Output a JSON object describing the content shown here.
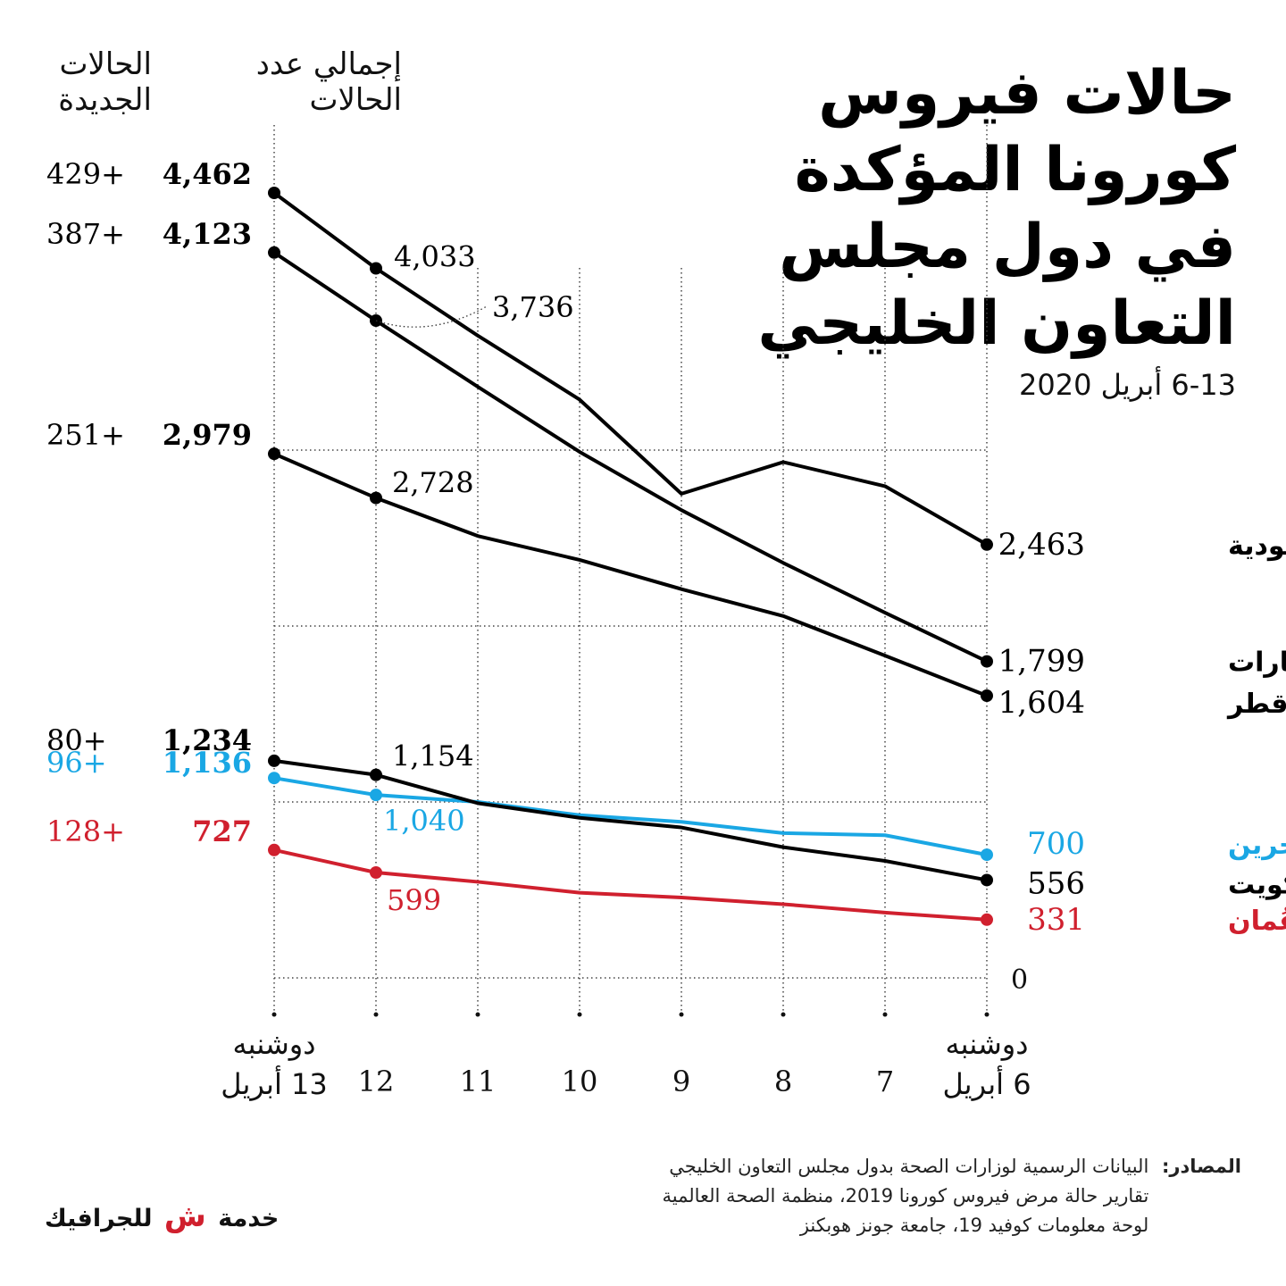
{
  "title_lines": [
    "حالات فيروس",
    "كورونا المؤكدة",
    "في دول مجلس",
    "التعاون الخليجي"
  ],
  "subtitle": "6-13 أبريل 2020",
  "col_head_new": [
    "الحالات",
    "الجديدة"
  ],
  "col_head_total": [
    "إجمالي عدد",
    "الحالات"
  ],
  "sources_label": "المصادر:",
  "sources": [
    "البيانات الرسمية لوزارات الصحة بدول مجلس التعاون الخليجي",
    "تقارير حالة مرض فيروس كورونا 2019، منظمة الصحة العالمية",
    "لوحة معلومات كوفيد 19، جامعة جونز هوبكنز"
  ],
  "brand": {
    "before": "خدمة",
    "mark": "ش",
    "after": "للجرافيك"
  },
  "colors": {
    "black": "#000000",
    "bahrain": "#1aa7e4",
    "oman": "#d0202e"
  },
  "chart_data": {
    "type": "line",
    "x_labels": [
      {
        "day": "6 أبريل",
        "weekday": "دوشنبه"
      },
      {
        "day": "7"
      },
      {
        "day": "8"
      },
      {
        "day": "9"
      },
      {
        "day": "10"
      },
      {
        "day": "11"
      },
      {
        "day": "12"
      },
      {
        "day": "13 أبريل",
        "weekday": "دوشنبه"
      }
    ],
    "y_zero_label": "0",
    "ylim": [
      0,
      4462
    ],
    "grid": true,
    "series": [
      {
        "name": "السعودية",
        "color": "#000000",
        "values": [
          2463,
          2795,
          2932,
          2752,
          3287,
          3651,
          4033,
          4462
        ],
        "end_label": "2,463",
        "start_label": "4,462",
        "new": "429+",
        "labels": [
          {
            "i": 6,
            "text": "4,033"
          }
        ]
      },
      {
        "name": "الإمارات",
        "color": "#000000",
        "values": [
          1799,
          2076,
          2359,
          2659,
          2990,
          3360,
          3736,
          4123
        ],
        "end_label": "1,799",
        "start_label": "4,123",
        "new": "387+",
        "labels": [
          {
            "i": 6,
            "text": "3,736"
          }
        ]
      },
      {
        "name": "قطر",
        "color": "#000000",
        "values": [
          1604,
          1832,
          2057,
          2210,
          2376,
          2512,
          2728,
          2979
        ],
        "end_label": "1,604",
        "start_label": "2,979",
        "new": "251+",
        "labels": [
          {
            "i": 6,
            "text": "2,728"
          }
        ]
      },
      {
        "name": "البحرين",
        "color": "#1aa7e4",
        "values": [
          700,
          811,
          823,
          887,
          925,
          1000,
          1040,
          1136
        ],
        "end_label": "700",
        "start_label": "1,136",
        "new": "96+",
        "labels": [
          {
            "i": 6,
            "text": "1,040"
          }
        ]
      },
      {
        "name": "الكويت",
        "color": "#000000",
        "values": [
          556,
          665,
          743,
          855,
          910,
          993,
          1154,
          1234
        ],
        "end_label": "556",
        "start_label": "1,234",
        "new": "80+",
        "labels": [
          {
            "i": 6,
            "text": "1,154"
          }
        ]
      },
      {
        "name": "عُمان",
        "color": "#d0202e",
        "values": [
          331,
          371,
          419,
          457,
          484,
          546,
          599,
          727
        ],
        "end_label": "331",
        "start_label": "727",
        "new": "128+",
        "labels": [
          {
            "i": 6,
            "text": "599"
          }
        ]
      }
    ]
  }
}
